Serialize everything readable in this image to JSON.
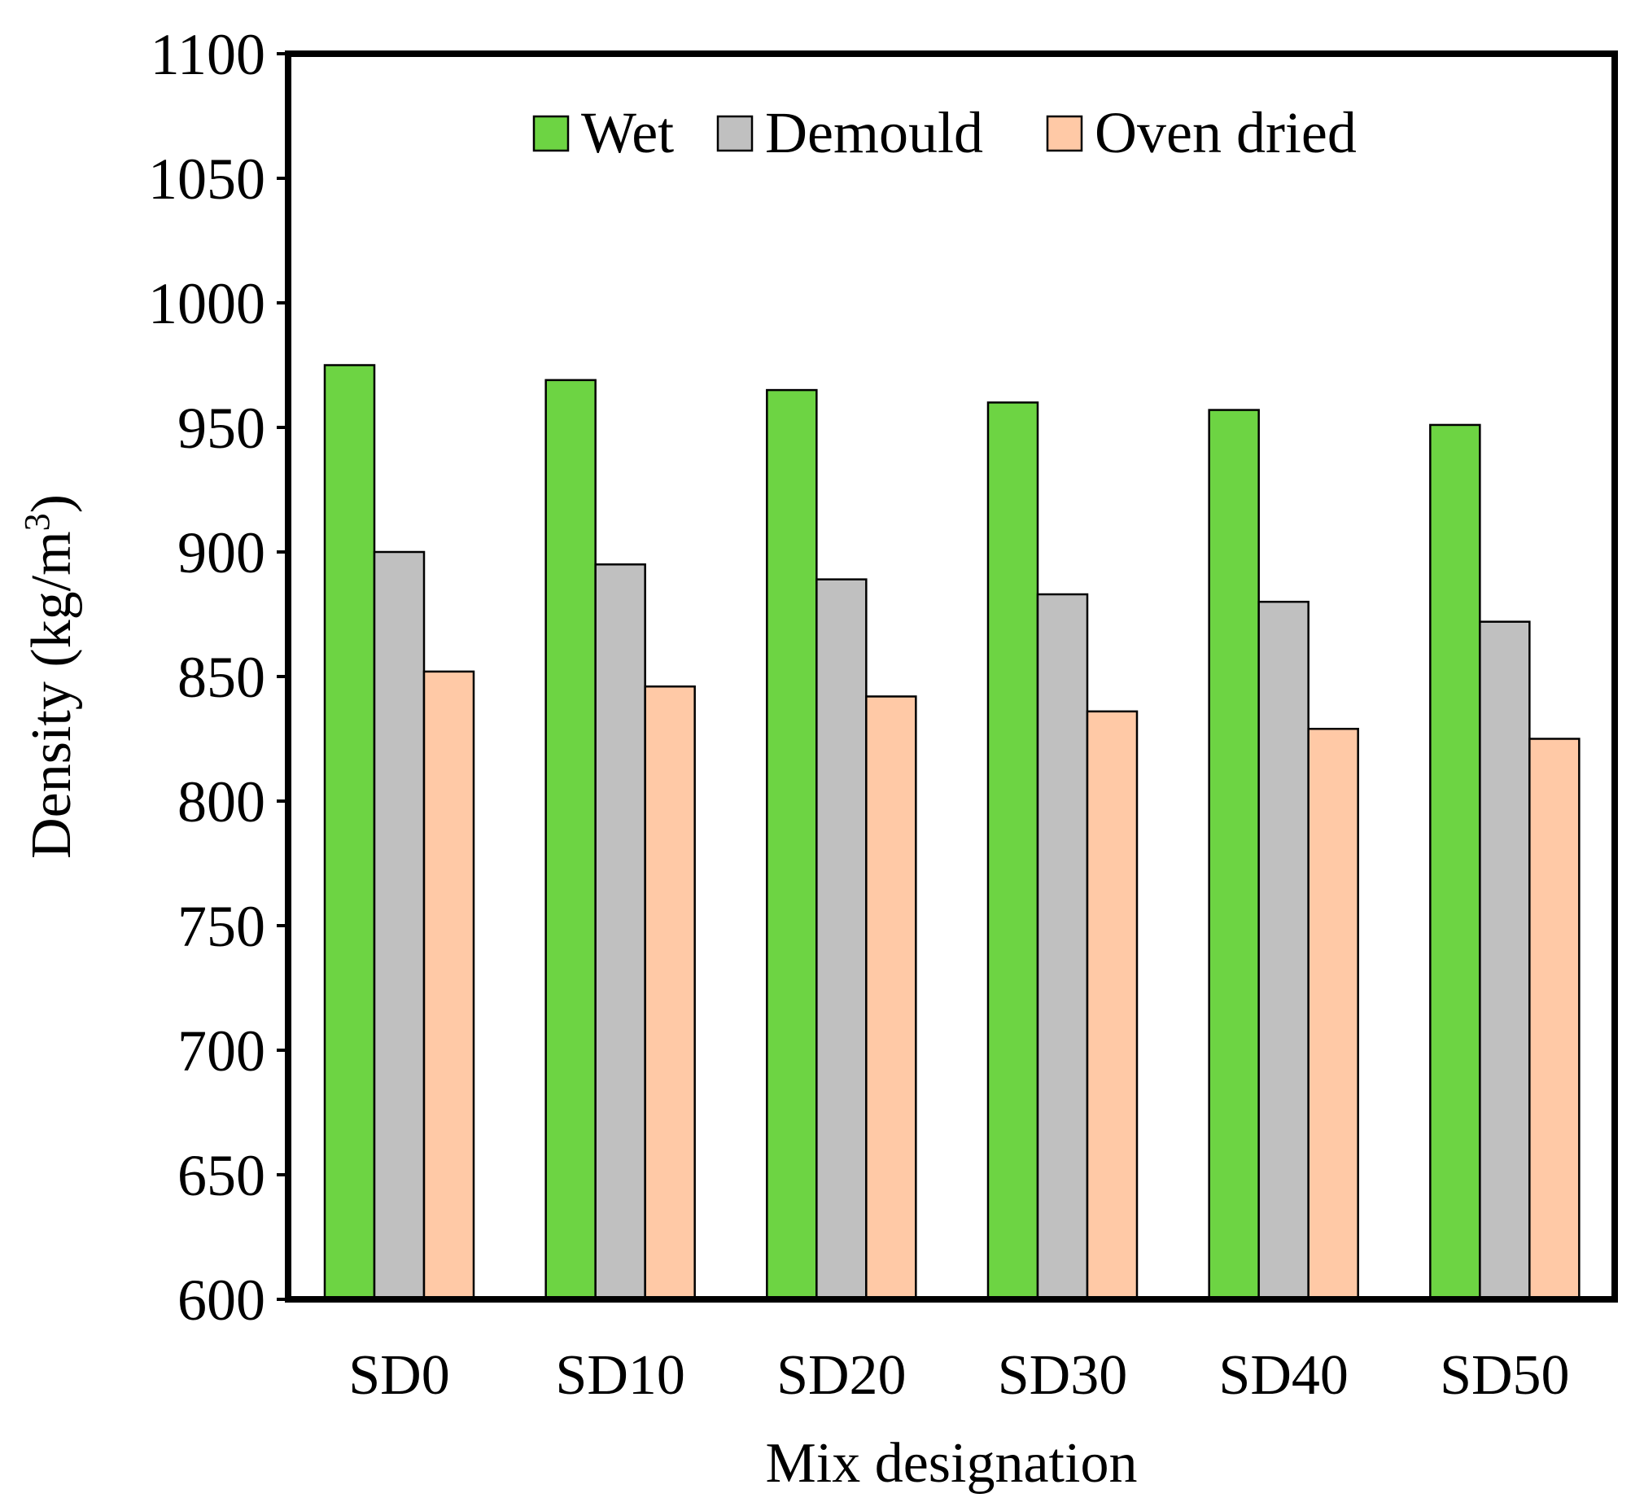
{
  "chart_data": {
    "type": "bar",
    "title": "",
    "xlabel": "Mix designation",
    "ylabel": "Density (kg/m3)",
    "ylabel_parts": {
      "main": "Density (kg/m",
      "superscript": "3",
      "close": ")"
    },
    "ylim": [
      600,
      1100
    ],
    "yticks": [
      "600",
      "650",
      "700",
      "750",
      "800",
      "850",
      "900",
      "950",
      "1000",
      "1050",
      "1100"
    ],
    "grid": false,
    "legend_position": "top-center",
    "categories": [
      "SD0",
      "SD10",
      "SD20",
      "SD30",
      "SD40",
      "SD50"
    ],
    "series": [
      {
        "name": "Wet",
        "color": "#6dd443",
        "values": [
          975,
          969,
          965,
          960,
          957,
          951
        ]
      },
      {
        "name": "Demould",
        "color": "#c0c0c0",
        "values": [
          900,
          895,
          889,
          883,
          880,
          872
        ]
      },
      {
        "name": "Oven dried",
        "color": "#ffc9a6",
        "values": [
          852,
          846,
          842,
          836,
          829,
          825
        ]
      }
    ]
  }
}
